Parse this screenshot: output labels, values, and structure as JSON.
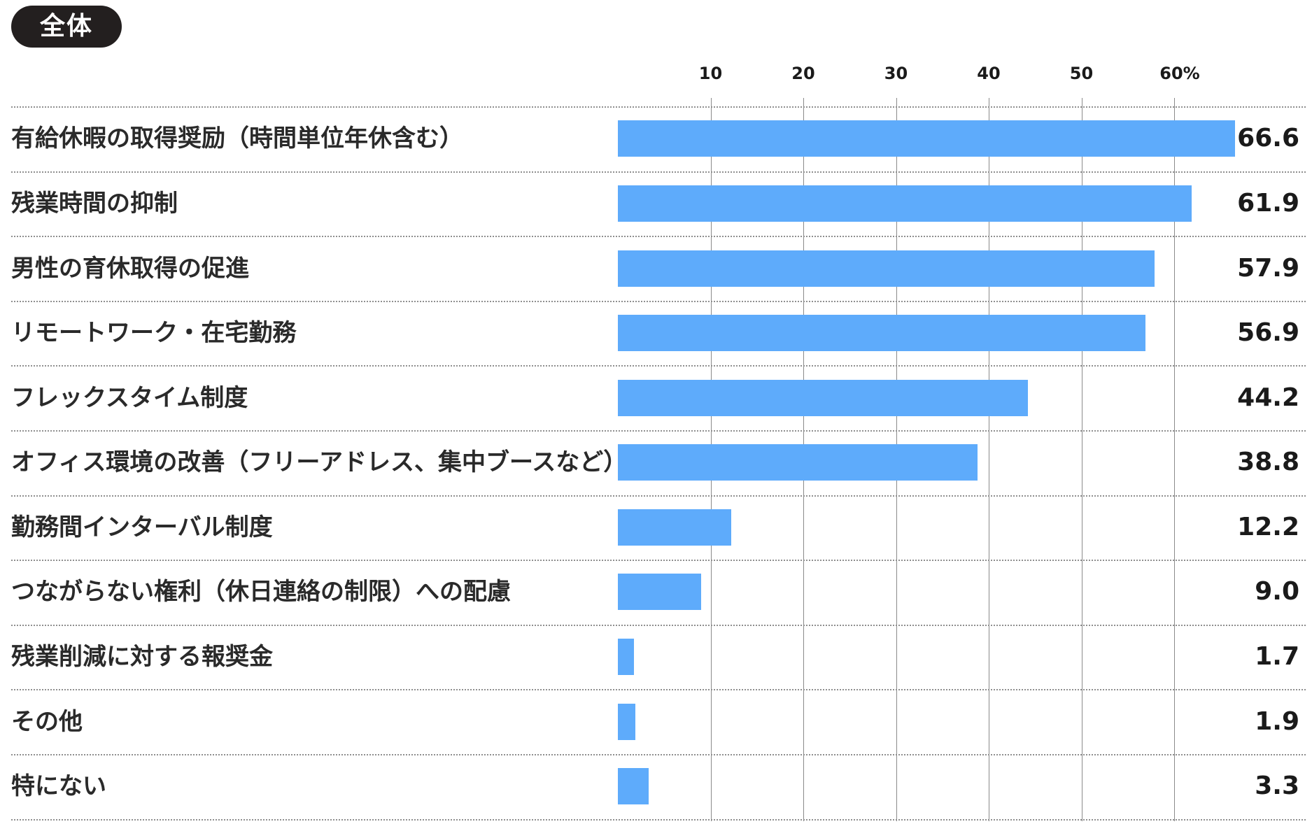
{
  "badge": {
    "label": "全体"
  },
  "chart_data": {
    "type": "bar",
    "orientation": "horizontal",
    "xlim": [
      0,
      66.6
    ],
    "ticks": [
      {
        "value": 10,
        "label": "10"
      },
      {
        "value": 20,
        "label": "20"
      },
      {
        "value": 30,
        "label": "30"
      },
      {
        "value": 40,
        "label": "40"
      },
      {
        "value": 50,
        "label": "50"
      },
      {
        "value": 60,
        "label": "60%"
      }
    ],
    "grid": true,
    "bar_color": "#5eabfb",
    "categories": [
      "有給休暇の取得奨励（時間単位年休含む）",
      "残業時間の抑制",
      "男性の育休取得の促進",
      "リモートワーク・在宅勤務",
      "フレックスタイム制度",
      "オフィス環境の改善（フリーアドレス、集中ブースなど）",
      "勤務間インターバル制度",
      "つながらない権利（休日連絡の制限）への配慮",
      "残業削減に対する報奨金",
      "その他",
      "特にない"
    ],
    "values": [
      66.6,
      61.9,
      57.9,
      56.9,
      44.2,
      38.8,
      12.2,
      9.0,
      1.7,
      1.9,
      3.3
    ],
    "value_labels": [
      "66.6",
      "61.9",
      "57.9",
      "56.9",
      "44.2",
      "38.8",
      "12.2",
      "9.0",
      "1.7",
      "1.9",
      "3.3"
    ]
  }
}
